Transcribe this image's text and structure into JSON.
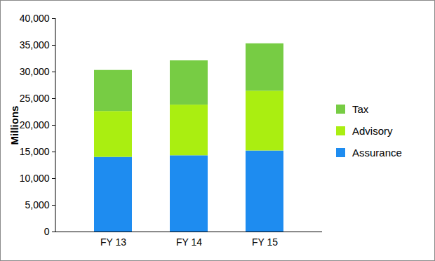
{
  "chart_data": {
    "type": "bar",
    "stacked": true,
    "grid": false,
    "legend": "right",
    "y_label": "Millions",
    "categories": [
      "FY 13",
      "FY 14",
      "FY 15"
    ],
    "series": [
      {
        "name": "Assurance",
        "color": "#1e8cf0",
        "values": [
          14000,
          14300,
          15200
        ]
      },
      {
        "name": "Advisory",
        "color": "#aaee11",
        "values": [
          8600,
          9500,
          11200
        ]
      },
      {
        "name": "Tax",
        "color": "#77cc44",
        "values": [
          7700,
          8300,
          8900
        ]
      }
    ],
    "ylim": [
      0,
      40000
    ],
    "yticks": [
      0,
      {
        "value": 5000,
        "label": "5,000"
      },
      {
        "value": 10000,
        "label": "10,000"
      },
      {
        "value": 15000,
        "label": "15,000"
      },
      {
        "value": 20000,
        "label": "20,000"
      },
      {
        "value": 25000,
        "label": "25,000"
      },
      {
        "value": 30000,
        "label": "30,000"
      },
      {
        "value": 35000,
        "label": "35,000"
      },
      {
        "value": 40000,
        "label": "40,000"
      }
    ]
  }
}
